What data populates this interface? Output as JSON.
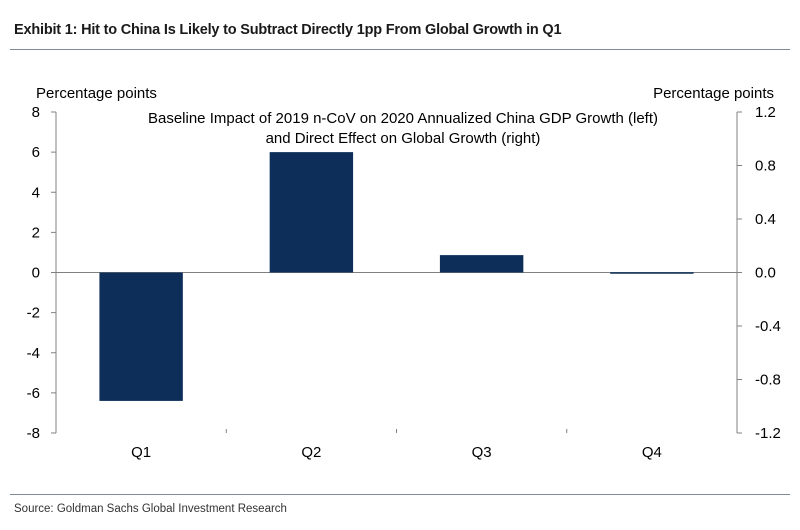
{
  "header": {
    "exhibit_title": "Exhibit 1: Hit to China Is Likely to Subtract Directly 1pp From Global Growth in Q1"
  },
  "footer": {
    "source": "Source: Goldman Sachs Global Investment Research"
  },
  "colors": {
    "bar": "#0c2e58",
    "axis": "#808080",
    "rule": "#7f8c99"
  },
  "chart_data": {
    "type": "bar",
    "title_lines": [
      "Baseline Impact of 2019 n-CoV on 2020 Annualized China GDP Growth (left)",
      "and Direct Effect on Global Growth (right)"
    ],
    "categories": [
      "Q1",
      "Q2",
      "Q3",
      "Q4"
    ],
    "series": [
      {
        "name": "Direct Effect on Global Growth (right)",
        "axis": "right",
        "values": [
          -0.96,
          0.9,
          0.13,
          -0.01
        ]
      }
    ],
    "ylabel_left": "Percentage points",
    "ylabel_right": "Percentage points",
    "ylim_left": [
      -8,
      8
    ],
    "ylim_right": [
      -1.2,
      1.2
    ],
    "yticks_left": [
      "8",
      "6",
      "4",
      "2",
      "0",
      "-2",
      "-4",
      "-6",
      "-8"
    ],
    "yticks_right": [
      "1.2",
      "0.8",
      "0.4",
      "0.0",
      "-0.4",
      "-0.8",
      "-1.2"
    ],
    "grid": false,
    "legend": "none"
  }
}
